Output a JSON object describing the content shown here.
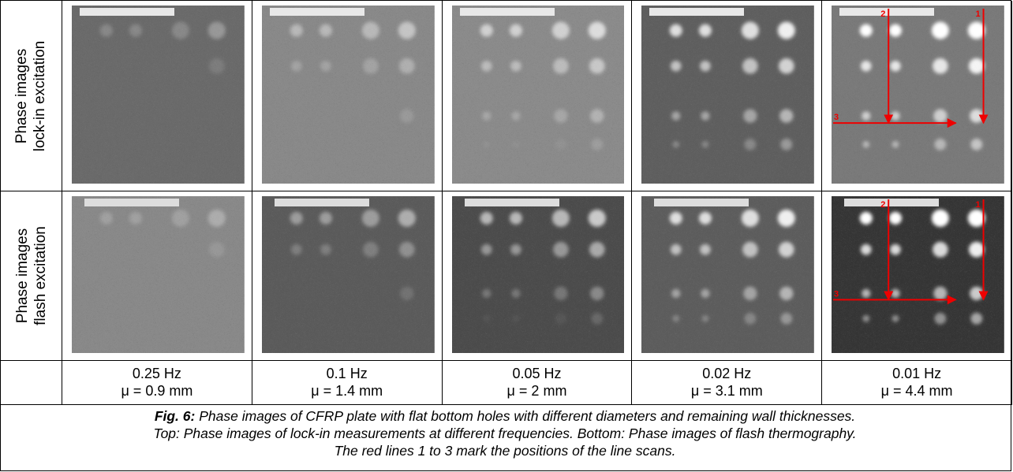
{
  "rows": [
    {
      "header": [
        "Phase images",
        "lock-in excitation"
      ]
    },
    {
      "header": [
        "Phase images",
        "flash excitation"
      ]
    }
  ],
  "columns": [
    {
      "frequency": "0.25 Hz",
      "mu": "μ = 0.9 mm"
    },
    {
      "frequency": "0.1 Hz",
      "mu": "μ = 1.4 mm"
    },
    {
      "frequency": "0.05 Hz",
      "mu": "μ = 2 mm"
    },
    {
      "frequency": "0.02 Hz",
      "mu": "μ = 3.1 mm"
    },
    {
      "frequency": "0.01 Hz",
      "mu": "μ = 4.4 mm"
    }
  ],
  "line_scan_labels": [
    "1",
    "2",
    "3"
  ],
  "caption": {
    "label": "Fig. 6:",
    "lines": [
      " Phase images of CFRP plate with flat bottom holes with different diameters and remaining wall thicknesses.",
      "Top: Phase images of lock-in measurements at different frequencies. Bottom: Phase images of flash thermography.",
      "The red lines 1 to 3 mark the positions of the line scans."
    ]
  }
}
